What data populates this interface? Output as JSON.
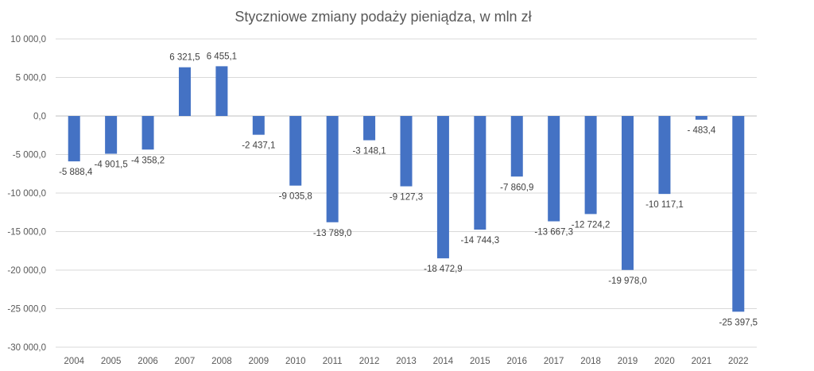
{
  "chart_data": {
    "type": "bar",
    "title": "Styczniowe zmiany podaży pieniądza, w mln zł",
    "xlabel": "",
    "ylabel": "",
    "ylim": [
      -30000,
      10000
    ],
    "y_ticks": [
      10000,
      5000,
      0,
      -5000,
      -10000,
      -15000,
      -20000,
      -25000,
      -30000
    ],
    "y_tick_labels": [
      "10 000,0",
      "5 000,0",
      "0,0",
      "-5 000,0",
      "-10 000,0",
      "-15 000,0",
      "-20 000,0",
      "-25 000,0",
      "-30 000,0"
    ],
    "grid": true,
    "legend": "none",
    "bar_color": "#4472c4",
    "categories": [
      "2004",
      "2005",
      "2006",
      "2007",
      "2008",
      "2009",
      "2010",
      "2011",
      "2012",
      "2013",
      "2014",
      "2015",
      "2016",
      "2017",
      "2018",
      "2019",
      "2020",
      "2021",
      "2022"
    ],
    "values": [
      -5888.4,
      -4901.5,
      -4358.2,
      6321.5,
      6455.1,
      -2437.1,
      -9035.8,
      -13789.0,
      -3148.1,
      -9127.3,
      -18472.9,
      -14744.3,
      -7860.9,
      -13667.3,
      -12724.2,
      -19978.0,
      -10117.1,
      -483.4,
      -25397.5
    ],
    "data_labels": [
      "-5 888,4",
      "-4 901,5",
      "-4 358,2",
      "6 321,5",
      "6 455,1",
      "-2 437,1",
      "-9 035,8",
      "-13 789,0",
      "-3 148,1",
      "-9 127,3",
      "-18 472,9",
      "-14 744,3",
      "-7 860,9",
      "-13 667,3",
      "-12 724,2",
      "-19 978,0",
      "-10 117,1",
      "- 483,4",
      "-25 397,5"
    ]
  }
}
